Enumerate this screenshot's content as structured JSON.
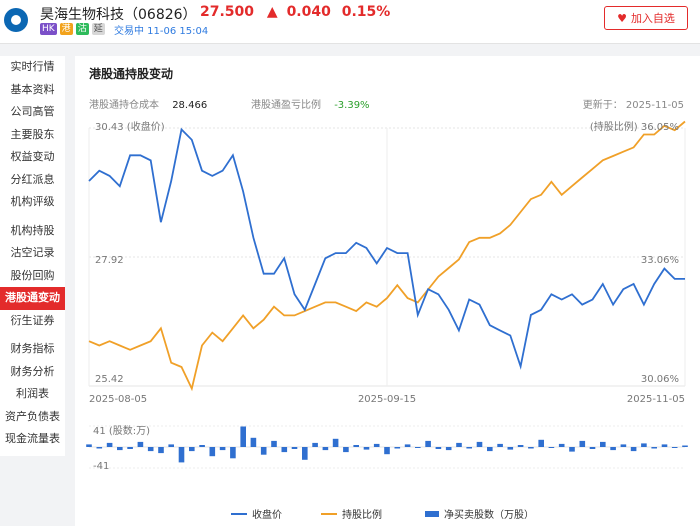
{
  "header": {
    "stock_name": "昊海生物科技（06826）",
    "price": "27.500",
    "change": "0.040",
    "change_pct": "0.15%",
    "badges": [
      "HK",
      "港",
      "沽",
      "延"
    ],
    "status": "交易中 11-06 15:04",
    "watch_button": "加入自选",
    "colors": {
      "up": "#e32b2b",
      "accent": "#2f7be0"
    }
  },
  "sidebar": {
    "items": [
      "实时行情",
      "基本资料",
      "公司高管",
      "主要股东",
      "权益变动",
      "分红派息",
      "机构评级",
      "机构持股",
      "沽空记录",
      "股份回购",
      "港股通变动",
      "衍生证券",
      "财务指标",
      "财务分析",
      "利润表",
      "资产负债表",
      "现金流量表"
    ],
    "active": "港股通变动"
  },
  "panel": {
    "title": "港股通持股变动",
    "cost_label": "港股通持仓成本",
    "cost_value": "28.466",
    "pl_label": "港股通盈亏比例",
    "pl_value": "-3.39%",
    "updated": "更新于： 2025-11-05"
  },
  "chart_data": {
    "type": "line",
    "x_ticks": [
      "2025-08-05",
      "2025-09-15",
      "2025-11-05"
    ],
    "left_axis": {
      "label": "(收盘价)",
      "ticks": [
        "30.43",
        "27.92",
        "25.42"
      ],
      "range": [
        25.42,
        30.43
      ]
    },
    "right_axis": {
      "label": "(持股比例)",
      "ticks": [
        "36.05%",
        "33.06%",
        "30.06%"
      ],
      "range": [
        30.06,
        36.05
      ]
    },
    "series": [
      {
        "name": "收盘价",
        "color": "#2f6fd0",
        "values": [
          29.4,
          29.6,
          29.5,
          29.3,
          29.9,
          29.9,
          29.8,
          28.6,
          29.4,
          30.4,
          30.2,
          29.6,
          29.5,
          29.6,
          29.9,
          29.2,
          28.3,
          27.6,
          27.6,
          27.9,
          27.2,
          26.9,
          27.4,
          27.9,
          28.0,
          28.0,
          28.2,
          28.1,
          27.8,
          28.1,
          28.0,
          28.0,
          26.8,
          27.3,
          27.2,
          26.9,
          26.5,
          27.1,
          27.0,
          26.6,
          26.5,
          26.4,
          25.8,
          26.8,
          26.9,
          27.2,
          27.1,
          27.2,
          27.0,
          27.1,
          27.4,
          27.0,
          27.3,
          27.4,
          27.0,
          27.4,
          27.7,
          27.5,
          27.5
        ]
      },
      {
        "name": "持股比例",
        "color": "#f0a028",
        "values": [
          31.1,
          31.0,
          31.1,
          31.0,
          30.9,
          31.0,
          31.1,
          31.4,
          30.6,
          30.5,
          30.0,
          31.0,
          31.3,
          31.1,
          31.4,
          31.7,
          31.4,
          31.6,
          31.9,
          31.7,
          31.7,
          31.8,
          31.9,
          32.0,
          32.0,
          31.9,
          31.8,
          32.0,
          31.9,
          32.1,
          32.4,
          32.1,
          32.0,
          32.3,
          32.6,
          32.8,
          33.0,
          33.4,
          33.5,
          33.5,
          33.6,
          33.8,
          34.1,
          34.4,
          34.5,
          34.8,
          34.5,
          34.7,
          34.9,
          35.1,
          35.3,
          35.4,
          35.5,
          35.6,
          35.9,
          35.9,
          36.1,
          36.0,
          36.2
        ]
      },
      {
        "name": "净买卖股数（万股）",
        "color": "#2f6fd0",
        "values": [
          5,
          -3,
          8,
          -6,
          -4,
          10,
          -8,
          -12,
          5,
          -30,
          -8,
          4,
          -18,
          -6,
          -22,
          40,
          18,
          -15,
          12,
          -10,
          -4,
          -25,
          8,
          -6,
          16,
          -10,
          4,
          -5,
          6,
          -14,
          -3,
          5,
          -2,
          12,
          -4,
          -6,
          8,
          -3,
          10,
          -8,
          6,
          -5,
          4,
          -3,
          14,
          -2,
          6,
          -9,
          12,
          -4,
          10,
          -6,
          5,
          -8,
          7,
          -3,
          5,
          -2,
          3
        ]
      }
    ],
    "bar_axis": {
      "label": "(股数:万)",
      "ticks": [
        "41",
        "-41"
      ],
      "range": [
        -41,
        41
      ]
    }
  }
}
